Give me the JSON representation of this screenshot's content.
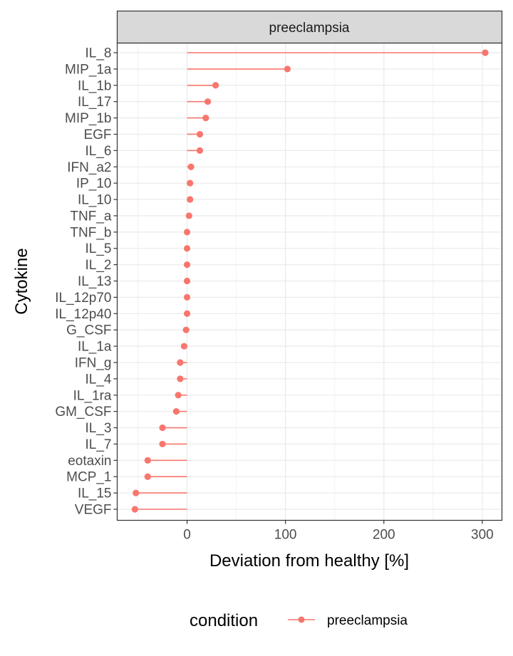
{
  "chart_data": {
    "type": "lollipop",
    "facet": "preeclampsia",
    "xlabel": "Deviation from healthy [%]",
    "ylabel": "Cytokine",
    "xlim": [
      -71,
      320
    ],
    "xticks": [
      0,
      100,
      200,
      300
    ],
    "grid": true,
    "legend": {
      "title": "condition",
      "placement": "bottom",
      "entries": [
        "preeclampsia"
      ]
    },
    "series": [
      {
        "name": "preeclampsia",
        "color": "#F8766D",
        "points": [
          {
            "cytokine": "IL_8",
            "value": 303
          },
          {
            "cytokine": "MIP_1a",
            "value": 102
          },
          {
            "cytokine": "IL_1b",
            "value": 29
          },
          {
            "cytokine": "IL_17",
            "value": 21
          },
          {
            "cytokine": "MIP_1b",
            "value": 19
          },
          {
            "cytokine": "EGF",
            "value": 13
          },
          {
            "cytokine": "IL_6",
            "value": 13
          },
          {
            "cytokine": "IFN_a2",
            "value": 4
          },
          {
            "cytokine": "IP_10",
            "value": 3
          },
          {
            "cytokine": "IL_10",
            "value": 3
          },
          {
            "cytokine": "TNF_a",
            "value": 2
          },
          {
            "cytokine": "TNF_b",
            "value": 0
          },
          {
            "cytokine": "IL_5",
            "value": 0
          },
          {
            "cytokine": "IL_2",
            "value": 0
          },
          {
            "cytokine": "IL_13",
            "value": 0
          },
          {
            "cytokine": "IL_12p70",
            "value": 0
          },
          {
            "cytokine": "IL_12p40",
            "value": 0
          },
          {
            "cytokine": "G_CSF",
            "value": -1
          },
          {
            "cytokine": "IL_1a",
            "value": -3
          },
          {
            "cytokine": "IFN_g",
            "value": -7
          },
          {
            "cytokine": "IL_4",
            "value": -7
          },
          {
            "cytokine": "IL_1ra",
            "value": -9
          },
          {
            "cytokine": "GM_CSF",
            "value": -11
          },
          {
            "cytokine": "IL_3",
            "value": -25
          },
          {
            "cytokine": "IL_7",
            "value": -25
          },
          {
            "cytokine": "eotaxin",
            "value": -40
          },
          {
            "cytokine": "MCP_1",
            "value": -40
          },
          {
            "cytokine": "IL_15",
            "value": -52
          },
          {
            "cytokine": "VEGF",
            "value": -53
          }
        ]
      }
    ]
  }
}
